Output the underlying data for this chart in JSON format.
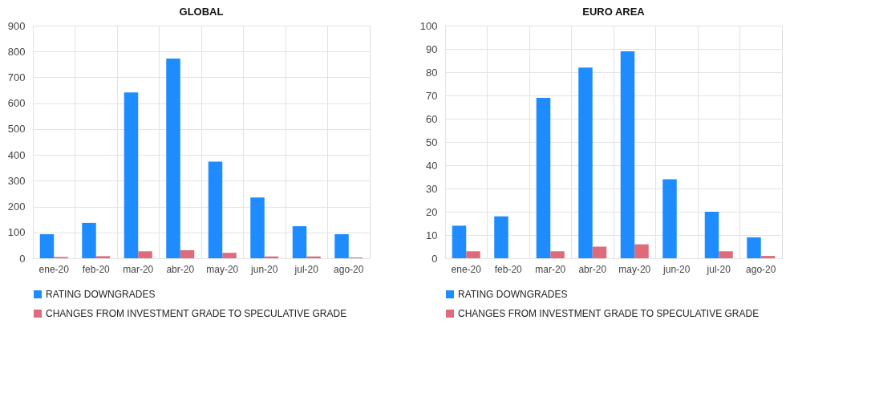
{
  "chart_data": [
    {
      "type": "bar",
      "title": "GLOBAL",
      "categories": [
        "ene-20",
        "feb-20",
        "mar-20",
        "abr-20",
        "may-20",
        "jun-20",
        "jul-20",
        "ago-20"
      ],
      "series": [
        {
          "name": "RATING DOWNGRADES",
          "color": "#1e8cff",
          "values": [
            93,
            137,
            642,
            773,
            374,
            235,
            124,
            93
          ]
        },
        {
          "name": "CHANGES FROM INVESTMENT GRADE TO SPECULATIVE GRADE",
          "color": "#dd6b7a",
          "values": [
            5,
            8,
            27,
            31,
            21,
            7,
            7,
            3
          ]
        }
      ],
      "ylim": [
        0,
        900
      ],
      "yticks": [
        0,
        100,
        200,
        300,
        400,
        500,
        600,
        700,
        800,
        900
      ],
      "grid": true,
      "legend": "bottom"
    },
    {
      "type": "bar",
      "title": "EURO AREA",
      "categories": [
        "ene-20",
        "feb-20",
        "mar-20",
        "abr-20",
        "may-20",
        "jun-20",
        "jul-20",
        "ago-20"
      ],
      "series": [
        {
          "name": "RATING DOWNGRADES",
          "color": "#1e8cff",
          "values": [
            14,
            18,
            69,
            82,
            89,
            34,
            20,
            9
          ]
        },
        {
          "name": "CHANGES FROM INVESTMENT GRADE TO SPECULATIVE GRADE",
          "color": "#dd6b7a",
          "values": [
            3,
            0,
            3,
            5,
            6,
            0,
            3,
            1
          ]
        }
      ],
      "ylim": [
        0,
        100
      ],
      "yticks": [
        0,
        10,
        20,
        30,
        40,
        50,
        60,
        70,
        80,
        90,
        100
      ],
      "grid": true,
      "legend": "bottom"
    }
  ]
}
